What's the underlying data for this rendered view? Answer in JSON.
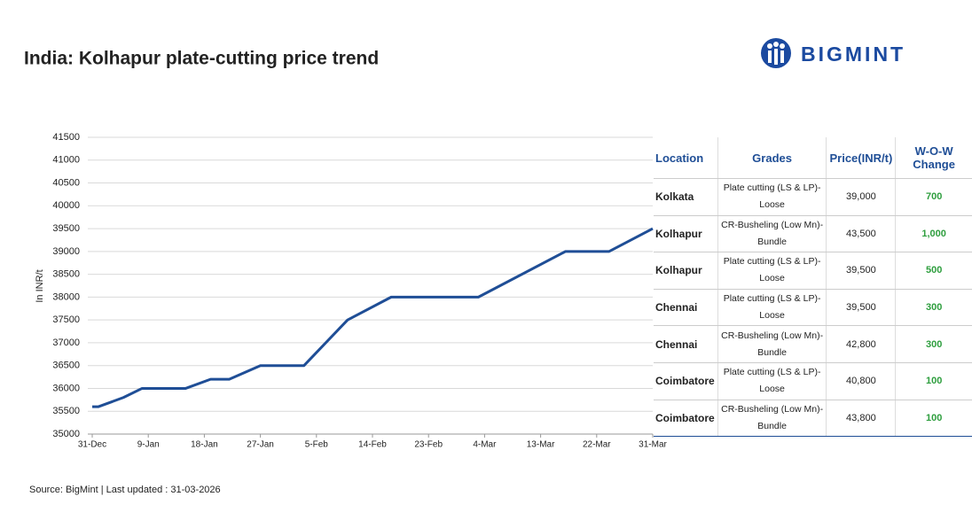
{
  "chart_data": {
    "type": "line",
    "title": "India: Kolhapur plate-cutting price trend",
    "y_label": "In INR/t",
    "x": [
      "31-Dec",
      "1-Jan",
      "5-Jan",
      "8-Jan",
      "15-Jan",
      "19-Jan",
      "22-Jan",
      "27-Jan",
      "3-Feb",
      "10-Feb",
      "17-Feb",
      "3-Mar",
      "17-Mar",
      "24-Mar",
      "31-Mar"
    ],
    "series": [
      {
        "name": "Kolhapur plate-cutting",
        "color": "#1f4e96",
        "values": [
          35600,
          35600,
          35800,
          36000,
          36000,
          36200,
          36200,
          36500,
          36500,
          37500,
          38000,
          38000,
          39000,
          39000,
          39500
        ]
      }
    ],
    "xlim": [
      "31-Dec",
      "31-Mar"
    ],
    "xticks": [
      "31-Dec",
      "9-Jan",
      "18-Jan",
      "27-Jan",
      "5-Feb",
      "14-Feb",
      "23-Feb",
      "4-Mar",
      "13-Mar",
      "22-Mar",
      "31-Mar"
    ],
    "ylim": [
      35000,
      41500
    ],
    "yticks": [
      35000,
      35500,
      36000,
      36500,
      37000,
      37500,
      38000,
      38500,
      39000,
      39500,
      40000,
      40500,
      41000,
      41500
    ],
    "grid": true
  },
  "table": {
    "header": [
      "Location",
      "Grades",
      "Price(INR/t)",
      "W-O-W Change"
    ],
    "rows": [
      [
        "Kolkata",
        "Plate cutting (LS & LP)-Loose",
        "39,000",
        "700"
      ],
      [
        "Kolhapur",
        "CR-Busheling (Low Mn)-Bundle",
        "43,500",
        "1,000"
      ],
      [
        "Kolhapur",
        "Plate cutting (LS & LP)-Loose",
        "39,500",
        "500"
      ],
      [
        "Chennai",
        "Plate cutting (LS & LP)-Loose",
        "39,500",
        "300"
      ],
      [
        "Chennai",
        "CR-Busheling (Low Mn)-Bundle",
        "42,800",
        "300"
      ],
      [
        "Coimbatore",
        "Plate cutting (LS & LP)-Loose",
        "40,800",
        "100"
      ],
      [
        "Coimbatore",
        "CR-Busheling (Low Mn)-Bundle",
        "43,800",
        "100"
      ]
    ]
  },
  "logo": "BIGMINT",
  "footer": "Source: BigMint | Last updated : 31-03-2026"
}
